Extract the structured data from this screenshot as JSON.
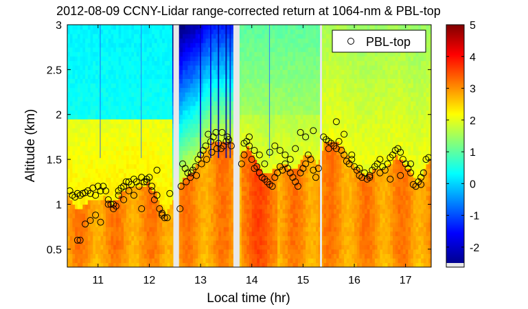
{
  "chart_data": {
    "type": "heatmap",
    "title": "2012-08-09 CCNY-Lidar range-corrected return at 1064-nm & PBL-top",
    "xlabel": "Local time (hr)",
    "ylabel": "Altitude (km)",
    "xlim": [
      10.4,
      17.5
    ],
    "ylim": [
      0.3,
      3.0
    ],
    "x_ticks": [
      11,
      12,
      13,
      14,
      15,
      16,
      17
    ],
    "y_ticks": [
      0.5,
      1,
      1.5,
      2,
      2.5,
      3
    ],
    "colorbar": {
      "range": [
        -2.5,
        5
      ],
      "ticks": [
        -2,
        -1,
        0,
        1,
        2,
        3,
        4,
        5
      ],
      "colormap": "jet"
    },
    "legend": {
      "label": "PBL-top",
      "placement": "top-right",
      "marker": "circle"
    },
    "data_gaps": [
      [
        12.47,
        12.58
      ],
      [
        13.64,
        13.76
      ],
      [
        15.33,
        15.37
      ]
    ],
    "series": [
      {
        "name": "PBL-top",
        "x": [
          10.45,
          10.5,
          10.55,
          10.6,
          10.65,
          10.7,
          10.75,
          10.8,
          10.85,
          10.9,
          10.95,
          11.0,
          11.05,
          11.1,
          11.15,
          11.2,
          11.25,
          11.3,
          11.35,
          11.4,
          11.45,
          11.5,
          11.55,
          11.6,
          11.65,
          11.7,
          11.75,
          11.8,
          11.85,
          11.9,
          11.95,
          12.0,
          12.05,
          12.1,
          12.15,
          12.2,
          12.25,
          12.3,
          12.35,
          12.4,
          10.6,
          10.65,
          10.75,
          10.85,
          10.95,
          11.05,
          11.2,
          11.3,
          11.4,
          11.5,
          11.6,
          11.7,
          11.85,
          11.95,
          12.05,
          12.15,
          12.25,
          12.6,
          12.65,
          12.7,
          12.75,
          12.8,
          12.85,
          12.9,
          12.95,
          13.0,
          13.05,
          13.1,
          13.15,
          13.2,
          13.25,
          13.3,
          13.35,
          13.4,
          13.45,
          13.5,
          13.55,
          13.6,
          12.62,
          12.72,
          12.82,
          12.92,
          13.02,
          13.12,
          13.22,
          13.32,
          13.42,
          13.52,
          13.8,
          13.85,
          13.9,
          13.95,
          14.0,
          14.05,
          14.1,
          14.15,
          14.2,
          14.25,
          14.3,
          14.35,
          14.4,
          14.45,
          14.5,
          14.55,
          14.6,
          14.65,
          14.7,
          14.75,
          14.8,
          14.85,
          14.9,
          14.95,
          15.0,
          15.05,
          15.1,
          15.15,
          15.2,
          15.25,
          15.3,
          13.85,
          13.95,
          14.05,
          14.15,
          14.25,
          14.35,
          14.45,
          14.55,
          14.65,
          14.75,
          14.85,
          14.95,
          15.05,
          15.2,
          15.4,
          15.45,
          15.5,
          15.55,
          15.6,
          15.65,
          15.7,
          15.75,
          15.8,
          15.85,
          15.9,
          15.95,
          16.0,
          16.05,
          16.1,
          16.15,
          16.2,
          16.25,
          16.3,
          16.35,
          16.4,
          16.45,
          16.5,
          16.55,
          16.6,
          16.65,
          16.7,
          16.75,
          16.8,
          16.85,
          16.9,
          16.95,
          17.0,
          17.05,
          17.1,
          17.15,
          17.2,
          17.25,
          17.3,
          17.35,
          17.4,
          17.45,
          15.5,
          15.65,
          15.8,
          15.95,
          16.1,
          16.3,
          16.5,
          16.7,
          16.9,
          17.1,
          17.3
        ],
        "y": [
          1.15,
          1.1,
          1.08,
          1.12,
          1.1,
          1.12,
          1.13,
          1.15,
          1.12,
          1.18,
          1.1,
          1.2,
          1.15,
          1.2,
          1.15,
          1.05,
          1.0,
          1.0,
          0.98,
          1.1,
          1.18,
          1.2,
          1.25,
          1.15,
          1.22,
          1.28,
          1.25,
          1.2,
          1.3,
          1.25,
          1.28,
          1.3,
          1.2,
          1.05,
          1.1,
          0.95,
          0.88,
          0.85,
          0.85,
          1.12,
          0.6,
          0.6,
          0.78,
          0.82,
          0.88,
          0.8,
          1.0,
          0.95,
          1.15,
          1.05,
          1.25,
          1.1,
          0.95,
          1.25,
          1.15,
          1.38,
          0.9,
          0.95,
          1.45,
          1.4,
          1.35,
          1.3,
          1.38,
          1.42,
          1.5,
          1.55,
          1.6,
          1.65,
          1.78,
          1.7,
          1.75,
          1.8,
          1.68,
          1.62,
          1.65,
          1.7,
          1.72,
          1.65,
          1.2,
          1.25,
          1.35,
          1.32,
          1.45,
          1.5,
          1.58,
          1.62,
          1.8,
          1.75,
          1.45,
          1.55,
          1.7,
          1.65,
          1.5,
          1.4,
          1.42,
          1.35,
          1.3,
          1.28,
          1.25,
          1.22,
          1.2,
          1.3,
          1.35,
          1.42,
          1.38,
          1.45,
          1.4,
          1.35,
          1.3,
          1.25,
          1.2,
          1.35,
          1.4,
          1.45,
          1.55,
          1.5,
          1.38,
          1.3,
          1.4,
          1.68,
          1.75,
          1.6,
          1.55,
          1.45,
          1.58,
          1.65,
          1.6,
          1.55,
          1.5,
          1.62,
          1.8,
          1.75,
          1.82,
          1.75,
          1.72,
          1.7,
          1.68,
          1.65,
          1.62,
          1.7,
          1.6,
          1.55,
          1.48,
          1.45,
          1.5,
          1.42,
          1.38,
          1.32,
          1.3,
          1.35,
          1.28,
          1.32,
          1.38,
          1.42,
          1.45,
          1.5,
          1.42,
          1.38,
          1.45,
          1.52,
          1.55,
          1.6,
          1.62,
          1.58,
          1.5,
          1.45,
          1.4,
          1.35,
          1.22,
          1.2,
          1.25,
          1.3,
          1.35,
          1.5,
          1.52,
          1.62,
          1.92,
          1.78,
          1.55,
          1.4,
          1.3,
          1.35,
          1.28,
          1.32,
          1.45,
          1.22
        ]
      }
    ]
  }
}
